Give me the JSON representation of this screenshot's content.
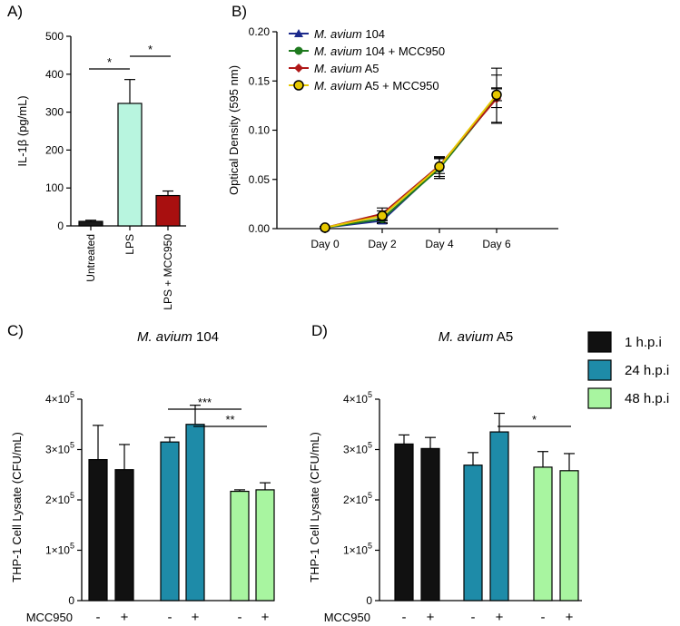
{
  "panels": {
    "A": {
      "letter": "A)"
    },
    "B": {
      "letter": "B)"
    },
    "C": {
      "letter": "C)"
    },
    "D": {
      "letter": "D)"
    }
  },
  "chart_data": [
    {
      "panel": "A",
      "type": "bar",
      "ylabel": "IL-1β (pg/mL)",
      "categories": [
        "Untreated",
        "LPS",
        "LPS + MCC950"
      ],
      "values": [
        12,
        323,
        80
      ],
      "errors": [
        3,
        63,
        12
      ],
      "colors": [
        "#1a1a1a",
        "#b8f5df",
        "#a80f0f"
      ],
      "ylim": [
        0,
        500
      ],
      "yticks": [
        "0",
        "100",
        "200",
        "300",
        "400",
        "500"
      ],
      "significance": [
        {
          "from": 0,
          "to": 1,
          "label": "*",
          "level": 1
        },
        {
          "from": 1,
          "to": 2,
          "label": "*",
          "level": 2
        }
      ]
    },
    {
      "panel": "B",
      "type": "line",
      "ylabel": "Optical Density (595 nm)",
      "x": [
        "Day 0",
        "Day 2",
        "Day 4",
        "Day 6"
      ],
      "ylim": [
        0,
        0.2
      ],
      "yticks": [
        "0.00",
        "0.05",
        "0.10",
        "0.15",
        "0.20"
      ],
      "legend_position": "top-left",
      "series": [
        {
          "name_italic": "M. avium",
          "name_rest": " 104",
          "color": "#1c2a8c",
          "marker": "triangle",
          "values": [
            0.001,
            0.008,
            0.062,
            0.135
          ],
          "errors": [
            0.001,
            0.003,
            0.011,
            0.028
          ]
        },
        {
          "name_italic": "M. avium",
          "name_rest": " 104 + MCC950",
          "color": "#1f7a1f",
          "marker": "circle",
          "values": [
            0.001,
            0.01,
            0.061,
            0.133
          ],
          "errors": [
            0.001,
            0.004,
            0.01,
            0.01
          ]
        },
        {
          "name_italic": "M. avium",
          "name_rest": " A5",
          "color": "#b01818",
          "marker": "diamond",
          "values": [
            0.001,
            0.015,
            0.064,
            0.132
          ],
          "errors": [
            0.001,
            0.006,
            0.008,
            0.024
          ]
        },
        {
          "name_italic": "M. avium",
          "name_rest": " A5 + MCC950",
          "color": "#e6c800",
          "marker": "circle-open",
          "values": [
            0.001,
            0.013,
            0.063,
            0.136
          ],
          "errors": [
            0.001,
            0.005,
            0.01,
            0.006
          ]
        }
      ]
    },
    {
      "panel": "C",
      "type": "bar",
      "title_italic": "M. avium",
      "title_rest": " 104",
      "ylabel": "THP-1 Cell Lysate (CFU/mL)",
      "xlabel_left": "MCC950",
      "ylim": [
        0,
        400000
      ],
      "yticks": [
        {
          "mant": "0",
          "exp": ""
        },
        {
          "mant": "1×10",
          "exp": "5"
        },
        {
          "mant": "2×10",
          "exp": "5"
        },
        {
          "mant": "3×10",
          "exp": "5"
        },
        {
          "mant": "4×10",
          "exp": "5"
        }
      ],
      "bars": [
        {
          "group": "1 h.p.i",
          "mcc950": "-",
          "value": 280000,
          "error": 68000
        },
        {
          "group": "1 h.p.i",
          "mcc950": "+",
          "value": 260000,
          "error": 50000
        },
        {
          "group": "24 h.p.i",
          "mcc950": "-",
          "value": 315000,
          "error": 9000
        },
        {
          "group": "24 h.p.i",
          "mcc950": "+",
          "value": 350000,
          "error": 38000
        },
        {
          "group": "48 h.p.i",
          "mcc950": "-",
          "value": 217000,
          "error": 3000
        },
        {
          "group": "48 h.p.i",
          "mcc950": "+",
          "value": 220000,
          "error": 14000
        }
      ],
      "significance": [
        {
          "from": 2,
          "to": 4,
          "label": "***",
          "level": 2
        },
        {
          "from": 3,
          "to": 5,
          "label": "**",
          "level": 1
        }
      ]
    },
    {
      "panel": "D",
      "type": "bar",
      "title_italic": "M. avium",
      "title_rest": " A5",
      "ylabel": "THP-1 Cell Lysate (CFU/mL)",
      "xlabel_left": "MCC950",
      "ylim": [
        0,
        400000
      ],
      "yticks": [
        {
          "mant": "0",
          "exp": ""
        },
        {
          "mant": "1×10",
          "exp": "5"
        },
        {
          "mant": "2×10",
          "exp": "5"
        },
        {
          "mant": "3×10",
          "exp": "5"
        },
        {
          "mant": "4×10",
          "exp": "5"
        }
      ],
      "bars": [
        {
          "group": "1 h.p.i",
          "mcc950": "-",
          "value": 311000,
          "error": 18000
        },
        {
          "group": "1 h.p.i",
          "mcc950": "+",
          "value": 302000,
          "error": 22000
        },
        {
          "group": "24 h.p.i",
          "mcc950": "-",
          "value": 269000,
          "error": 25000
        },
        {
          "group": "24 h.p.i",
          "mcc950": "+",
          "value": 335000,
          "error": 37000
        },
        {
          "group": "48 h.p.i",
          "mcc950": "-",
          "value": 265000,
          "error": 31000
        },
        {
          "group": "48 h.p.i",
          "mcc950": "+",
          "value": 258000,
          "error": 34000
        }
      ],
      "significance": [
        {
          "from": 3,
          "to": 5,
          "label": "*",
          "level": 1
        }
      ]
    }
  ],
  "legend_cd": {
    "items": [
      {
        "label": "1 h.p.i",
        "color": "#111111"
      },
      {
        "label": "24 h.p.i",
        "color": "#1e8ba8"
      },
      {
        "label": "48 h.p.i",
        "color": "#a8f5a0"
      }
    ]
  }
}
